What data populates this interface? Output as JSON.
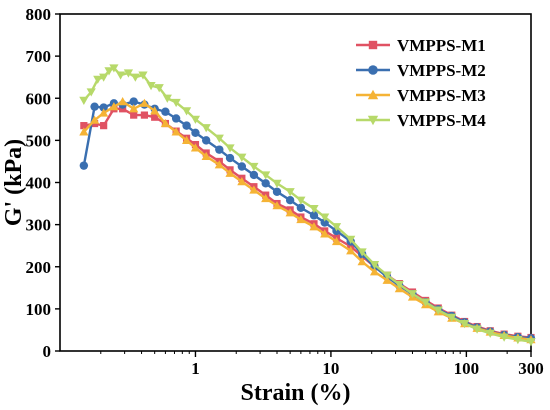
{
  "chart_data": {
    "type": "line",
    "xscale": "log",
    "xlim": [
      0.1,
      300
    ],
    "ylim": [
      0,
      800
    ],
    "xticks": [
      1,
      10,
      100,
      300
    ],
    "xtick_labels": [
      "1",
      "10",
      "100",
      "300"
    ],
    "yticks": [
      0,
      100,
      200,
      300,
      400,
      500,
      600,
      700,
      800
    ],
    "xlabel": "Strain (%)",
    "ylabel": "G' (kPa)",
    "grid": false,
    "legend_position": "top-right",
    "series": [
      {
        "name": "VMPPS-M1",
        "color": "#e05263",
        "marker": "square",
        "x": [
          0.15,
          0.18,
          0.21,
          0.25,
          0.29,
          0.35,
          0.42,
          0.5,
          0.6,
          0.72,
          0.86,
          1.0,
          1.2,
          1.5,
          1.8,
          2.2,
          2.7,
          3.3,
          4.0,
          5.0,
          6.0,
          7.5,
          9.0,
          11.0,
          14.0,
          17.0,
          21.0,
          26.0,
          32.0,
          40.0,
          50.0,
          62.0,
          78.0,
          97.0,
          120.0,
          150.0,
          190.0,
          240.0,
          300.0
        ],
        "y": [
          535,
          540,
          535,
          575,
          575,
          560,
          560,
          555,
          540,
          522,
          505,
          490,
          470,
          450,
          430,
          410,
          390,
          370,
          350,
          335,
          318,
          302,
          285,
          268,
          248,
          225,
          200,
          180,
          160,
          140,
          120,
          102,
          85,
          70,
          58,
          48,
          40,
          35,
          32
        ]
      },
      {
        "name": "VMPPS-M2",
        "color": "#3a6fb0",
        "marker": "circle",
        "x": [
          0.15,
          0.18,
          0.21,
          0.25,
          0.29,
          0.35,
          0.42,
          0.5,
          0.6,
          0.72,
          0.86,
          1.0,
          1.2,
          1.5,
          1.8,
          2.2,
          2.7,
          3.3,
          4.0,
          5.0,
          6.0,
          7.5,
          9.0,
          11.0,
          14.0,
          17.0,
          21.0,
          26.0,
          32.0,
          40.0,
          50.0,
          62.0,
          78.0,
          97.0,
          120.0,
          150.0,
          190.0,
          240.0,
          300.0
        ],
        "y": [
          440,
          580,
          578,
          588,
          585,
          592,
          585,
          575,
          568,
          552,
          535,
          518,
          500,
          478,
          458,
          438,
          418,
          398,
          378,
          358,
          340,
          322,
          305,
          285,
          260,
          230,
          200,
          176,
          155,
          135,
          116,
          99,
          83,
          68,
          56,
          46,
          38,
          33,
          30
        ]
      },
      {
        "name": "VMPPS-M3",
        "color": "#f5b335",
        "marker": "triangle-up",
        "x": [
          0.15,
          0.18,
          0.21,
          0.25,
          0.29,
          0.35,
          0.42,
          0.5,
          0.6,
          0.72,
          0.86,
          1.0,
          1.2,
          1.5,
          1.8,
          2.2,
          2.7,
          3.3,
          4.0,
          5.0,
          6.0,
          7.5,
          9.0,
          11.0,
          14.0,
          17.0,
          21.0,
          26.0,
          32.0,
          40.0,
          50.0,
          62.0,
          78.0,
          97.0,
          120.0,
          150.0,
          190.0,
          240.0,
          300.0
        ],
        "y": [
          520,
          548,
          565,
          580,
          592,
          575,
          588,
          570,
          540,
          520,
          500,
          482,
          462,
          442,
          422,
          402,
          382,
          362,
          345,
          328,
          312,
          295,
          278,
          260,
          238,
          212,
          188,
          168,
          148,
          128,
          110,
          93,
          78,
          65,
          54,
          45,
          37,
          31,
          27
        ]
      },
      {
        "name": "VMPPS-M4",
        "color": "#b7d96a",
        "marker": "triangle-down",
        "x": [
          0.15,
          0.17,
          0.19,
          0.21,
          0.23,
          0.25,
          0.28,
          0.32,
          0.36,
          0.41,
          0.47,
          0.54,
          0.62,
          0.72,
          0.86,
          1.0,
          1.2,
          1.5,
          1.8,
          2.2,
          2.7,
          3.3,
          4.0,
          5.0,
          6.0,
          7.5,
          9.0,
          11.0,
          14.0,
          17.0,
          21.0,
          26.0,
          32.0,
          40.0,
          50.0,
          62.0,
          78.0,
          97.0,
          120.0,
          150.0,
          190.0,
          240.0,
          300.0
        ],
        "y": [
          595,
          615,
          645,
          650,
          665,
          672,
          655,
          660,
          650,
          655,
          630,
          625,
          600,
          590,
          570,
          550,
          530,
          505,
          482,
          460,
          438,
          418,
          398,
          378,
          358,
          338,
          318,
          295,
          265,
          235,
          205,
          180,
          158,
          136,
          116,
          97,
          80,
          65,
          52,
          42,
          33,
          27,
          22
        ]
      }
    ]
  }
}
